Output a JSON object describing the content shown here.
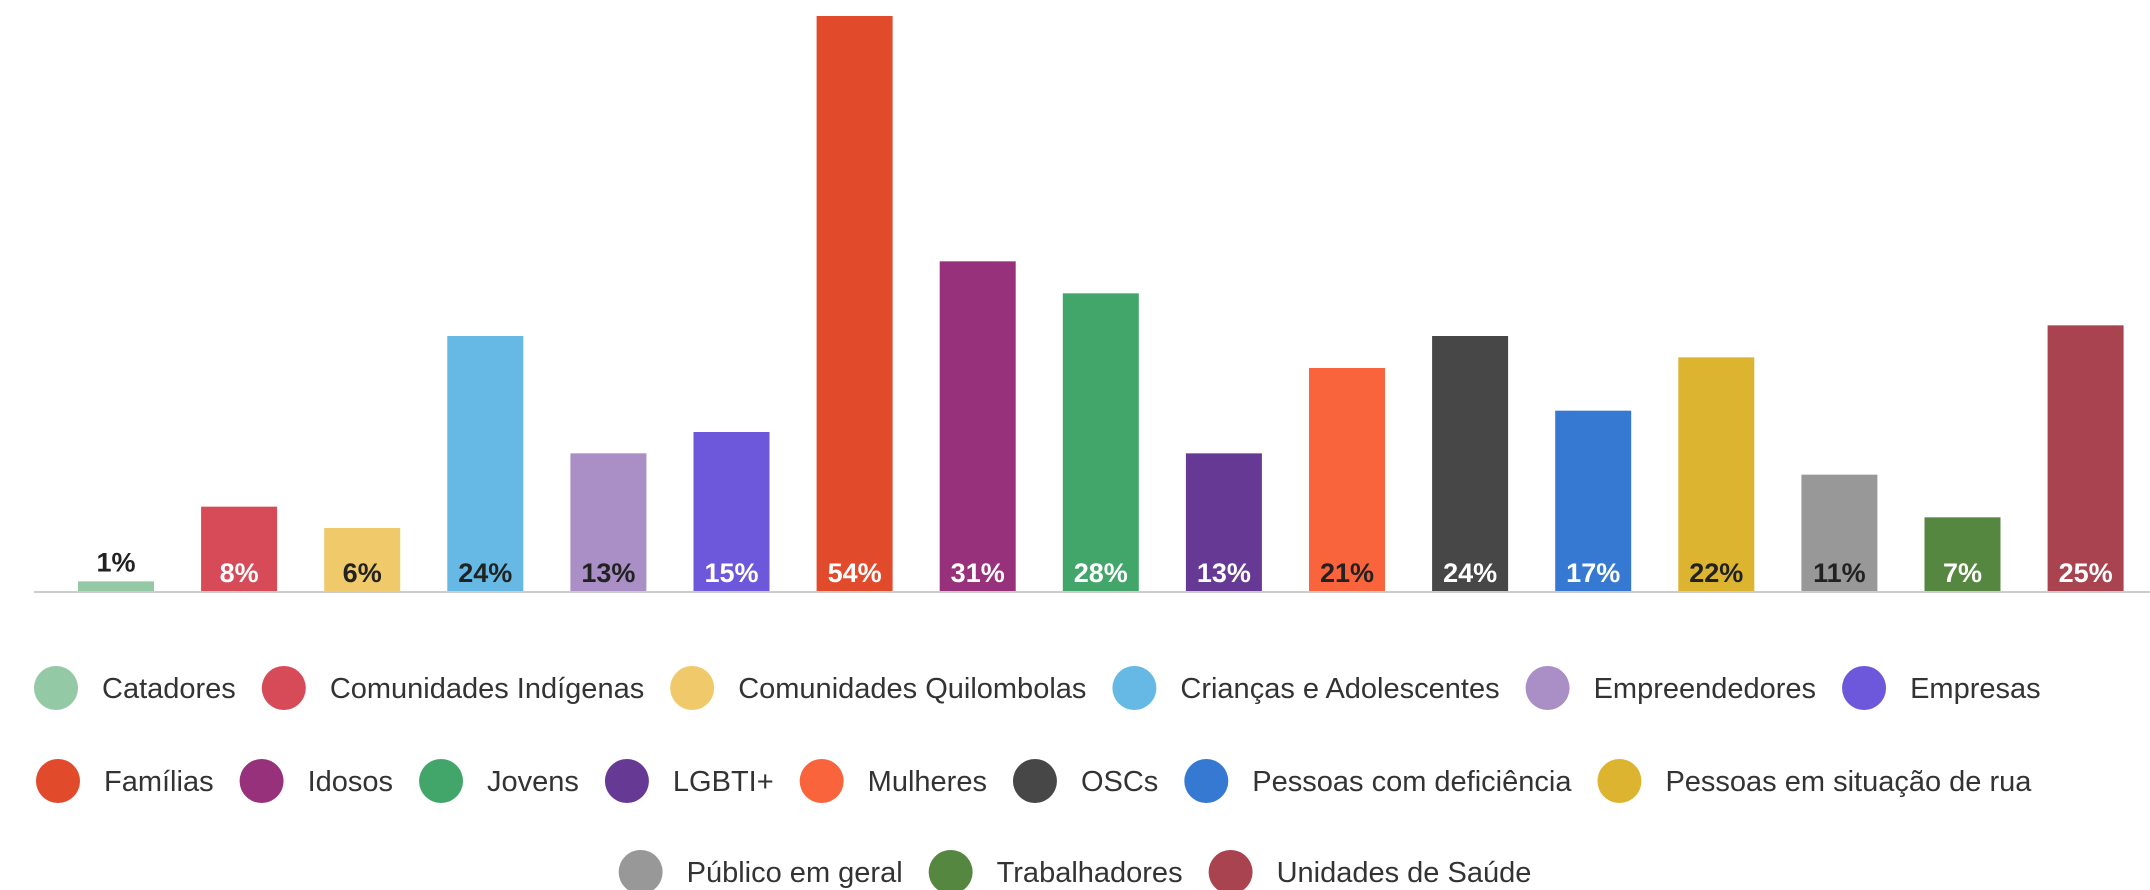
{
  "chart_data": {
    "type": "bar",
    "title": "",
    "xlabel": "",
    "ylabel": "",
    "ylim": [
      0,
      54
    ],
    "grid": false,
    "legend_position": "bottom",
    "value_suffix": "%",
    "categories": [
      "Catadores",
      "Comunidades Indígenas",
      "Comunidades Quilombolas",
      "Crianças e Adolescentes",
      "Empreendedores",
      "Empresas",
      "Famílias",
      "Idosos",
      "Jovens",
      "LGBTI+",
      "Mulheres",
      "OSCs",
      "Pessoas com deficiência",
      "Pessoas em situação de rua",
      "Público em geral",
      "Trabalhadores",
      "Unidades de Saúde"
    ],
    "values": [
      1,
      8,
      6,
      24,
      13,
      15,
      54,
      31,
      28,
      13,
      21,
      24,
      17,
      22,
      11,
      7,
      25
    ],
    "data_labels": [
      "1%",
      "8%",
      "6%",
      "24%",
      "13%",
      "15%",
      "54%",
      "31%",
      "28%",
      "13%",
      "21%",
      "24%",
      "17%",
      "22%",
      "11%",
      "7%",
      "25%"
    ],
    "colors": [
      "#93c9a5",
      "#d64b57",
      "#f0c96a",
      "#66b9e4",
      "#a98fc5",
      "#6d58db",
      "#e14a2a",
      "#98317b",
      "#42a66a",
      "#663a94",
      "#f9643c",
      "#474747",
      "#3679d3",
      "#dcb42f",
      "#989898",
      "#568740",
      "#a8434f"
    ],
    "label_colors": [
      "#222222",
      "#ffffff",
      "#222222",
      "#222222",
      "#222222",
      "#ffffff",
      "#ffffff",
      "#ffffff",
      "#ffffff",
      "#ffffff",
      "#222222",
      "#ffffff",
      "#ffffff",
      "#222222",
      "#222222",
      "#ffffff",
      "#ffffff"
    ],
    "label_outside": [
      true,
      false,
      false,
      false,
      false,
      false,
      false,
      false,
      false,
      false,
      false,
      false,
      false,
      false,
      false,
      false,
      false
    ]
  }
}
